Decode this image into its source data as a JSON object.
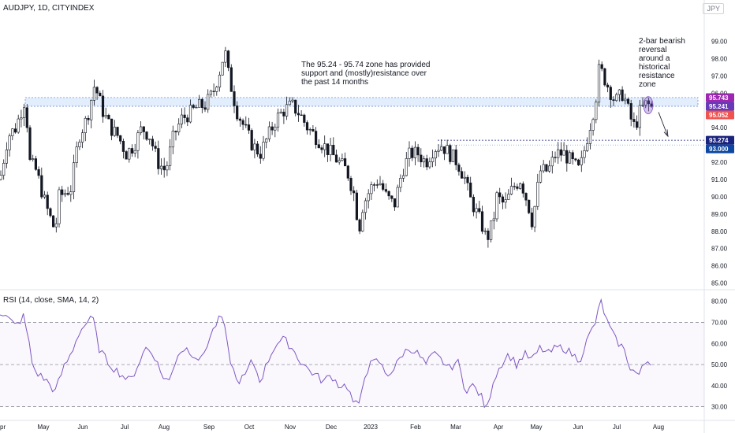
{
  "header": {
    "symbol": "AUDJPY, 1D, CITYINDEX",
    "currency": "JPY"
  },
  "annotations": {
    "zone_note": "The 95.24 - 95.74 zone has provided\nsupport and (mostly)resistance over\nthe past 14 months",
    "reversal_note": "2-bar bearish\nreversal\naround a\nhistorical\nresistance\nzone"
  },
  "chart_data": {
    "type": "candlestick",
    "x_ticks": [
      "pr",
      "May",
      "Jun",
      "Jul",
      "Aug",
      "Sep",
      "Oct",
      "Nov",
      "Dec",
      "2023",
      "Feb",
      "Mar",
      "Apr",
      "May",
      "Jun",
      "Jul",
      "Aug"
    ],
    "y_ticks": [
      85,
      86,
      87,
      88,
      89,
      90,
      91,
      92,
      93,
      94,
      95,
      96,
      97,
      98,
      99
    ],
    "y_tick_labels": [
      "85.00",
      "86.00",
      "87.00",
      "88.00",
      "89.00",
      "90.00",
      "91.00",
      "92.00",
      "93.00",
      "94.00",
      "95.00",
      "96.00",
      "97.00",
      "98.00",
      "99.00"
    ],
    "ylim": [
      84.8,
      100.3
    ],
    "price_path": [
      [
        0,
        91.0
      ],
      [
        10,
        93.5
      ],
      [
        20,
        94.0
      ],
      [
        32,
        95.7
      ],
      [
        38,
        92.0
      ],
      [
        46,
        91.5
      ],
      [
        58,
        89.5
      ],
      [
        70,
        88.0
      ],
      [
        75,
        90.0
      ],
      [
        90,
        90.5
      ],
      [
        100,
        93.5
      ],
      [
        110,
        94.5
      ],
      [
        120,
        96.5
      ],
      [
        130,
        95.0
      ],
      [
        140,
        94.0
      ],
      [
        150,
        93.5
      ],
      [
        160,
        92.5
      ],
      [
        170,
        93.0
      ],
      [
        180,
        94.0
      ],
      [
        190,
        93.5
      ],
      [
        200,
        92.0
      ],
      [
        210,
        91.5
      ],
      [
        220,
        93.5
      ],
      [
        230,
        94.5
      ],
      [
        240,
        94.8
      ],
      [
        250,
        95.2
      ],
      [
        260,
        95.3
      ],
      [
        270,
        96.0
      ],
      [
        280,
        97.5
      ],
      [
        285,
        98.5
      ],
      [
        290,
        97.0
      ],
      [
        300,
        95.0
      ],
      [
        310,
        94.0
      ],
      [
        320,
        93.0
      ],
      [
        330,
        92.5
      ],
      [
        340,
        93.5
      ],
      [
        350,
        94.5
      ],
      [
        360,
        95.0
      ],
      [
        370,
        95.3
      ],
      [
        380,
        94.8
      ],
      [
        390,
        94.0
      ],
      [
        400,
        93.5
      ],
      [
        410,
        93.0
      ],
      [
        420,
        92.5
      ],
      [
        430,
        92.0
      ],
      [
        440,
        91.5
      ],
      [
        450,
        90.0
      ],
      [
        455,
        88.0
      ],
      [
        460,
        89.5
      ],
      [
        470,
        90.5
      ],
      [
        480,
        91.0
      ],
      [
        490,
        90.0
      ],
      [
        500,
        89.5
      ],
      [
        510,
        91.5
      ],
      [
        520,
        92.5
      ],
      [
        530,
        92.5
      ],
      [
        540,
        92.0
      ],
      [
        550,
        92.8
      ],
      [
        560,
        93.0
      ],
      [
        570,
        92.5
      ],
      [
        580,
        92.0
      ],
      [
        590,
        91.0
      ],
      [
        595,
        90.0
      ],
      [
        600,
        89.5
      ],
      [
        610,
        88.5
      ],
      [
        617,
        87.5
      ],
      [
        625,
        88.5
      ],
      [
        630,
        90.0
      ],
      [
        640,
        89.5
      ],
      [
        650,
        90.5
      ],
      [
        660,
        91.0
      ],
      [
        670,
        89.5
      ],
      [
        675,
        88.5
      ],
      [
        685,
        91.5
      ],
      [
        695,
        91.5
      ],
      [
        705,
        92.5
      ],
      [
        715,
        92.5
      ],
      [
        725,
        92.0
      ],
      [
        735,
        91.5
      ],
      [
        745,
        93.5
      ],
      [
        755,
        95.5
      ],
      [
        760,
        97.5
      ],
      [
        770,
        96.5
      ],
      [
        780,
        95.5
      ],
      [
        790,
        96.0
      ],
      [
        800,
        94.5
      ],
      [
        805,
        94.0
      ],
      [
        812,
        95.0
      ],
      [
        820,
        95.4
      ],
      [
        828,
        95.1
      ]
    ],
    "zone": {
      "low": 95.241,
      "high": 95.743
    },
    "support_line": 93.274,
    "price_labels": [
      {
        "value": 95.743,
        "text": "95.743",
        "color": "#9c27b0"
      },
      {
        "value": 95.241,
        "text": "95.241",
        "color": "#673ab7"
      },
      {
        "value": 95.052,
        "text": "95.052",
        "color": "#ef5350"
      },
      {
        "value": 93.274,
        "text": "93.274",
        "color": "#1a237e"
      },
      {
        "value": 93.0,
        "text": "93.000",
        "color": "#0d47a1"
      }
    ],
    "rsi": {
      "label": "RSI (14, close, SMA, 14, 2)",
      "ylim": [
        25,
        84
      ],
      "y_ticks": [
        30,
        40,
        50,
        60,
        70,
        80
      ],
      "y_tick_labels": [
        "30.00",
        "40.00",
        "50.00",
        "60.00",
        "70.00",
        "80.00"
      ],
      "levels": [
        30,
        50,
        70
      ],
      "path": [
        [
          0,
          75
        ],
        [
          10,
          72
        ],
        [
          20,
          68
        ],
        [
          30,
          73
        ],
        [
          36,
          62
        ],
        [
          42,
          48
        ],
        [
          50,
          45
        ],
        [
          60,
          42
        ],
        [
          70,
          37
        ],
        [
          80,
          48
        ],
        [
          90,
          55
        ],
        [
          100,
          65
        ],
        [
          110,
          70
        ],
        [
          118,
          72
        ],
        [
          125,
          58
        ],
        [
          135,
          52
        ],
        [
          145,
          48
        ],
        [
          155,
          45
        ],
        [
          165,
          42
        ],
        [
          175,
          50
        ],
        [
          185,
          58
        ],
        [
          195,
          55
        ],
        [
          205,
          45
        ],
        [
          215,
          42
        ],
        [
          225,
          55
        ],
        [
          235,
          58
        ],
        [
          245,
          55
        ],
        [
          255,
          52
        ],
        [
          265,
          62
        ],
        [
          275,
          70
        ],
        [
          282,
          73
        ],
        [
          290,
          55
        ],
        [
          300,
          42
        ],
        [
          310,
          44
        ],
        [
          320,
          52
        ],
        [
          330,
          42
        ],
        [
          340,
          52
        ],
        [
          350,
          60
        ],
        [
          360,
          62
        ],
        [
          370,
          58
        ],
        [
          380,
          52
        ],
        [
          390,
          48
        ],
        [
          400,
          45
        ],
        [
          410,
          42
        ],
        [
          420,
          45
        ],
        [
          430,
          40
        ],
        [
          440,
          40
        ],
        [
          448,
          32
        ],
        [
          455,
          30
        ],
        [
          462,
          45
        ],
        [
          470,
          50
        ],
        [
          480,
          52
        ],
        [
          490,
          45
        ],
        [
          500,
          48
        ],
        [
          510,
          55
        ],
        [
          520,
          58
        ],
        [
          530,
          55
        ],
        [
          540,
          50
        ],
        [
          550,
          55
        ],
        [
          560,
          52
        ],
        [
          570,
          48
        ],
        [
          580,
          52
        ],
        [
          590,
          38
        ],
        [
          600,
          40
        ],
        [
          610,
          35
        ],
        [
          617,
          28
        ],
        [
          625,
          42
        ],
        [
          635,
          50
        ],
        [
          645,
          55
        ],
        [
          655,
          50
        ],
        [
          665,
          55
        ],
        [
          675,
          52
        ],
        [
          685,
          58
        ],
        [
          695,
          55
        ],
        [
          705,
          58
        ],
        [
          715,
          58
        ],
        [
          725,
          55
        ],
        [
          735,
          52
        ],
        [
          745,
          62
        ],
        [
          755,
          70
        ],
        [
          762,
          80
        ],
        [
          770,
          70
        ],
        [
          780,
          62
        ],
        [
          790,
          58
        ],
        [
          800,
          48
        ],
        [
          810,
          45
        ],
        [
          820,
          52
        ],
        [
          828,
          51
        ]
      ]
    }
  }
}
